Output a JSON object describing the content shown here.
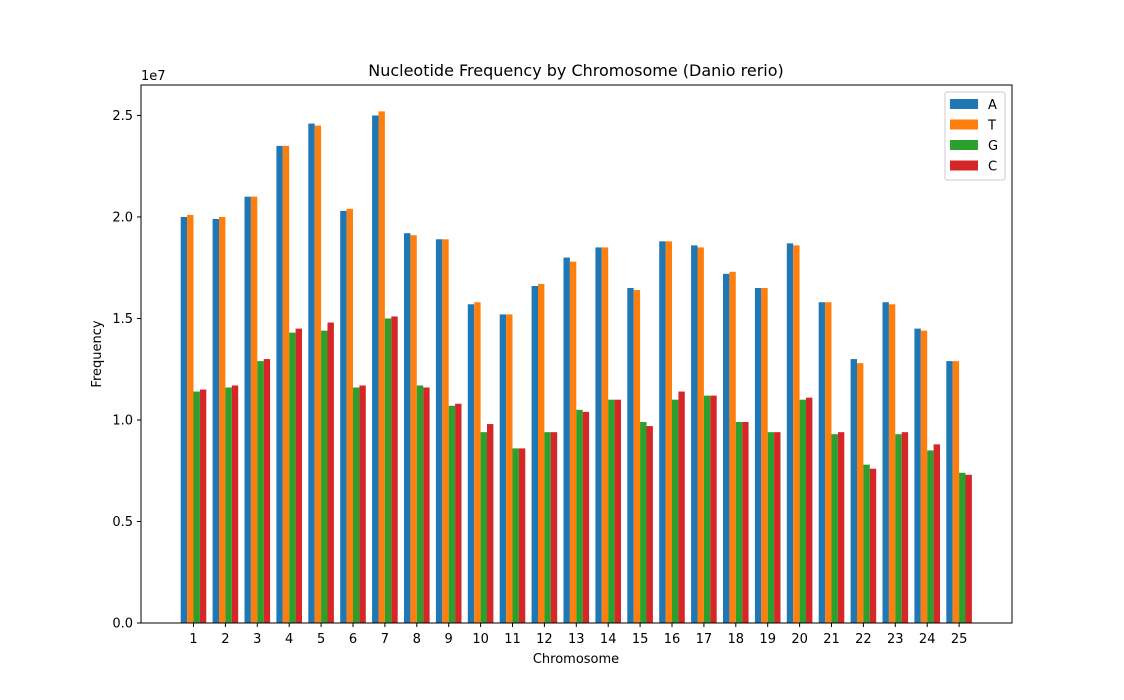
{
  "chart_data": {
    "type": "bar",
    "title": "Nucleotide Frequency by Chromosome (Danio rerio)",
    "xlabel": "Chromosome",
    "ylabel": "Frequency",
    "y_multiplier_label": "1e7",
    "ylim": [
      0,
      26500000
    ],
    "y_ticks": [
      0,
      5000000,
      10000000,
      15000000,
      20000000,
      25000000
    ],
    "y_tick_labels": [
      "0.0",
      "0.5",
      "1.0",
      "1.5",
      "2.0",
      "2.5"
    ],
    "categories": [
      "1",
      "2",
      "3",
      "4",
      "5",
      "6",
      "7",
      "8",
      "9",
      "10",
      "11",
      "12",
      "13",
      "14",
      "15",
      "16",
      "17",
      "18",
      "19",
      "20",
      "21",
      "22",
      "23",
      "24",
      "25"
    ],
    "legend_position": "top-right",
    "grid": false,
    "series": [
      {
        "name": "A",
        "color": "#1f77b4",
        "values": [
          20000000,
          19900000,
          21000000,
          23500000,
          24600000,
          20300000,
          25000000,
          19200000,
          18900000,
          15700000,
          15200000,
          16600000,
          18000000,
          18500000,
          16500000,
          18800000,
          18600000,
          17200000,
          16500000,
          18700000,
          15800000,
          13000000,
          15800000,
          14500000,
          12900000
        ]
      },
      {
        "name": "T",
        "color": "#ff7f0e",
        "values": [
          20100000,
          20000000,
          21000000,
          23500000,
          24500000,
          20400000,
          25200000,
          19100000,
          18900000,
          15800000,
          15200000,
          16700000,
          17800000,
          18500000,
          16400000,
          18800000,
          18500000,
          17300000,
          16500000,
          18600000,
          15800000,
          12800000,
          15700000,
          14400000,
          12900000
        ]
      },
      {
        "name": "G",
        "color": "#2ca02c",
        "values": [
          11400000,
          11600000,
          12900000,
          14300000,
          14400000,
          11600000,
          15000000,
          11700000,
          10700000,
          9400000,
          8600000,
          9400000,
          10500000,
          11000000,
          9900000,
          11000000,
          11200000,
          9900000,
          9400000,
          11000000,
          9300000,
          7800000,
          9300000,
          8500000,
          7400000
        ]
      },
      {
        "name": "C",
        "color": "#d62728",
        "values": [
          11500000,
          11700000,
          13000000,
          14500000,
          14800000,
          11700000,
          15100000,
          11600000,
          10800000,
          9800000,
          8600000,
          9400000,
          10400000,
          11000000,
          9700000,
          11400000,
          11200000,
          9900000,
          9400000,
          11100000,
          9400000,
          7600000,
          9400000,
          8800000,
          7300000
        ]
      }
    ]
  }
}
